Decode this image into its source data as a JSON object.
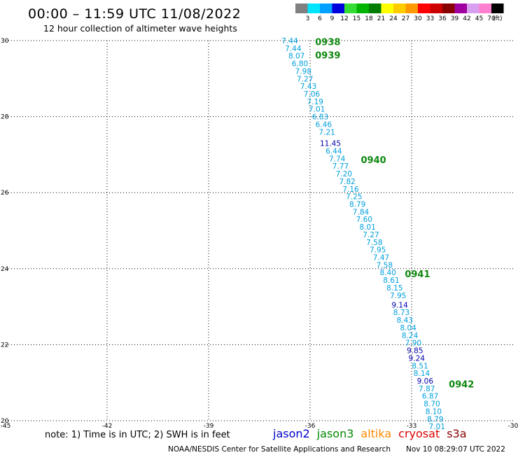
{
  "header": {
    "title": "00:00 – 11:59 UTC 11/08/2022",
    "subtitle": "12 hour collection of altimeter wave heights"
  },
  "color_scale": {
    "unit_label": "(ft)",
    "bins": [
      {
        "label": "3",
        "color": "#808080"
      },
      {
        "label": "6",
        "color": "#00e5ff"
      },
      {
        "label": "9",
        "color": "#00a0ff"
      },
      {
        "label": "12",
        "color": "#0000dd"
      },
      {
        "label": "15",
        "color": "#33dd33"
      },
      {
        "label": "18",
        "color": "#00b400"
      },
      {
        "label": "21",
        "color": "#007d00"
      },
      {
        "label": "24",
        "color": "#ffff00"
      },
      {
        "label": "27",
        "color": "#ffcc00"
      },
      {
        "label": "30",
        "color": "#ff9900"
      },
      {
        "label": "33",
        "color": "#ff0000"
      },
      {
        "label": "36",
        "color": "#cc0000"
      },
      {
        "label": "39",
        "color": "#880000"
      },
      {
        "label": "42",
        "color": "#a000a0"
      },
      {
        "label": "45",
        "color": "#d8a0f0"
      },
      {
        "label": "70",
        "color": "#ff80d0"
      },
      {
        "label": "",
        "color": "#000000"
      }
    ]
  },
  "chart_data": {
    "type": "scatter",
    "xlim": [
      -45,
      -30
    ],
    "ylim": [
      20,
      30
    ],
    "x_ticks": [
      -45,
      -42,
      -39,
      -36,
      -33,
      -30
    ],
    "y_ticks": [
      20,
      22,
      24,
      26,
      28,
      30
    ],
    "x_tick_labels": [
      "-45",
      "-42",
      "-39",
      "-36",
      "-33",
      "-30"
    ],
    "y_tick_labels": [
      "20",
      "22",
      "24",
      "26",
      "28",
      "30"
    ],
    "grid": true,
    "colors": {
      "light": "#00a0dd",
      "dark": "#0000aa",
      "time": "#118811"
    },
    "points": [
      {
        "x": -36.6,
        "y": 30.0,
        "label": "7.44",
        "color": "light"
      },
      {
        "x": -36.5,
        "y": 29.8,
        "label": "7.44",
        "color": "light"
      },
      {
        "x": -36.4,
        "y": 29.6,
        "label": "8.07",
        "color": "light"
      },
      {
        "x": -36.3,
        "y": 29.4,
        "label": "6.80",
        "color": "light"
      },
      {
        "x": -36.2,
        "y": 29.2,
        "label": "7.98",
        "color": "light"
      },
      {
        "x": -36.15,
        "y": 29.0,
        "label": "7.27",
        "color": "light"
      },
      {
        "x": -36.05,
        "y": 28.8,
        "label": "7.43",
        "color": "light"
      },
      {
        "x": -35.95,
        "y": 28.6,
        "label": "7.06",
        "color": "light"
      },
      {
        "x": -35.85,
        "y": 28.4,
        "label": "7.19",
        "color": "light"
      },
      {
        "x": -35.8,
        "y": 28.2,
        "label": "7.01",
        "color": "light"
      },
      {
        "x": -35.7,
        "y": 28.0,
        "label": "6.83",
        "color": "light"
      },
      {
        "x": -35.6,
        "y": 27.8,
        "label": "6.46",
        "color": "light"
      },
      {
        "x": -35.5,
        "y": 27.6,
        "label": "7.21",
        "color": "light"
      },
      {
        "x": -35.4,
        "y": 27.3,
        "label": "11.45",
        "color": "dark"
      },
      {
        "x": -35.3,
        "y": 27.1,
        "label": "6.44",
        "color": "light"
      },
      {
        "x": -35.2,
        "y": 26.9,
        "label": "7.74",
        "color": "light"
      },
      {
        "x": -35.1,
        "y": 26.7,
        "label": "7.77",
        "color": "light"
      },
      {
        "x": -35.0,
        "y": 26.5,
        "label": "7.20",
        "color": "light"
      },
      {
        "x": -34.9,
        "y": 26.3,
        "label": "7.82",
        "color": "light"
      },
      {
        "x": -34.8,
        "y": 26.1,
        "label": "7.16",
        "color": "light"
      },
      {
        "x": -34.7,
        "y": 25.9,
        "label": "7.25",
        "color": "light"
      },
      {
        "x": -34.6,
        "y": 25.7,
        "label": "8.79",
        "color": "light"
      },
      {
        "x": -34.5,
        "y": 25.5,
        "label": "7.84",
        "color": "light"
      },
      {
        "x": -34.4,
        "y": 25.3,
        "label": "7.60",
        "color": "light"
      },
      {
        "x": -34.3,
        "y": 25.1,
        "label": "8.01",
        "color": "light"
      },
      {
        "x": -34.2,
        "y": 24.9,
        "label": "7.27",
        "color": "light"
      },
      {
        "x": -34.1,
        "y": 24.7,
        "label": "7.58",
        "color": "light"
      },
      {
        "x": -34.0,
        "y": 24.5,
        "label": "7.95",
        "color": "light"
      },
      {
        "x": -33.9,
        "y": 24.3,
        "label": "7.47",
        "color": "light"
      },
      {
        "x": -33.8,
        "y": 24.1,
        "label": "7.58",
        "color": "light"
      },
      {
        "x": -33.7,
        "y": 23.9,
        "label": "8.40",
        "color": "light"
      },
      {
        "x": -33.6,
        "y": 23.7,
        "label": "8.61",
        "color": "light"
      },
      {
        "x": -33.5,
        "y": 23.5,
        "label": "8.15",
        "color": "light"
      },
      {
        "x": -33.4,
        "y": 23.3,
        "label": "7.95",
        "color": "light"
      },
      {
        "x": -33.35,
        "y": 23.05,
        "label": "9.14",
        "color": "dark"
      },
      {
        "x": -33.3,
        "y": 22.85,
        "label": "8.73",
        "color": "light"
      },
      {
        "x": -33.2,
        "y": 22.65,
        "label": "8.43",
        "color": "light"
      },
      {
        "x": -33.1,
        "y": 22.45,
        "label": "8.04",
        "color": "light"
      },
      {
        "x": -33.05,
        "y": 22.25,
        "label": "8.24",
        "color": "light"
      },
      {
        "x": -32.95,
        "y": 22.05,
        "label": "7.90",
        "color": "light"
      },
      {
        "x": -32.9,
        "y": 21.85,
        "label": "9.85",
        "color": "dark"
      },
      {
        "x": -32.85,
        "y": 21.65,
        "label": "9.24",
        "color": "dark"
      },
      {
        "x": -32.75,
        "y": 21.45,
        "label": "8.51",
        "color": "light"
      },
      {
        "x": -32.7,
        "y": 21.25,
        "label": "8.14",
        "color": "light"
      },
      {
        "x": -32.6,
        "y": 21.05,
        "label": "9.06",
        "color": "dark"
      },
      {
        "x": -32.55,
        "y": 20.85,
        "label": "7.87",
        "color": "light"
      },
      {
        "x": -32.45,
        "y": 20.65,
        "label": "6.87",
        "color": "light"
      },
      {
        "x": -32.4,
        "y": 20.45,
        "label": "8.70",
        "color": "light"
      },
      {
        "x": -32.35,
        "y": 20.25,
        "label": "8.10",
        "color": "light"
      },
      {
        "x": -32.3,
        "y": 20.05,
        "label": "8.79",
        "color": "light"
      },
      {
        "x": -32.25,
        "y": 19.85,
        "label": "7.01",
        "color": "light"
      }
    ],
    "time_labels": [
      {
        "x": -35.85,
        "y": 29.95,
        "label": "0938"
      },
      {
        "x": -35.85,
        "y": 29.6,
        "label": "0939"
      },
      {
        "x": -34.5,
        "y": 26.85,
        "label": "0940"
      },
      {
        "x": -33.2,
        "y": 23.85,
        "label": "0941"
      },
      {
        "x": -31.9,
        "y": 20.95,
        "label": "0942"
      }
    ]
  },
  "footer": {
    "note": "note: 1) Time is in UTC; 2) SWH is in feet",
    "legend": [
      {
        "name": "jason2",
        "color": "#0000cc"
      },
      {
        "name": "jason3",
        "color": "#008800"
      },
      {
        "name": "altika",
        "color": "#ff8800"
      },
      {
        "name": "cryosat",
        "color": "#dd0000"
      },
      {
        "name": "s3a",
        "color": "#880000"
      }
    ],
    "credit_left": "NOAA/NESDIS Center for Satellite Applications and Research",
    "credit_right": "Nov 10 08:29:07 UTC 2022"
  }
}
